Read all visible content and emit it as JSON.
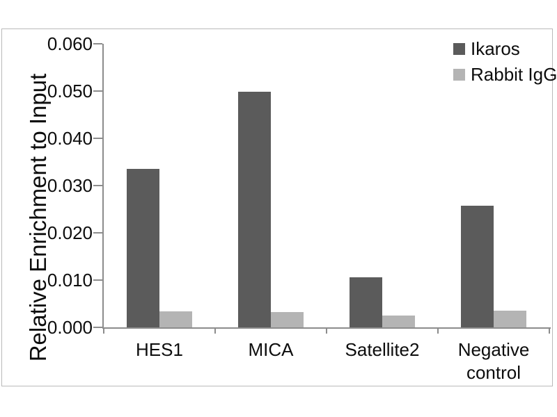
{
  "chart_data": {
    "type": "bar",
    "title": "",
    "xlabel": "",
    "ylabel": "Relative Enrichment to Input",
    "categories": [
      "HES1",
      "MICA",
      "Satellite2",
      "Negative control"
    ],
    "series": [
      {
        "name": "Ikaros",
        "color": "#5b5b5b",
        "values": [
          0.0335,
          0.0498,
          0.0106,
          0.0258
        ]
      },
      {
        "name": "Rabbit IgG",
        "color": "#b4b4b4",
        "values": [
          0.0034,
          0.0032,
          0.0025,
          0.0036
        ]
      }
    ],
    "ylim": [
      0,
      0.06
    ],
    "y_tick_step": 0.01,
    "y_tick_labels": [
      "0.000",
      "0.010",
      "0.020",
      "0.030",
      "0.040",
      "0.050",
      "0.060"
    ],
    "grid": false,
    "legend_position": "top-right",
    "colors": {
      "axis": "#8c8c8c",
      "frame_border": "#b9b9b9",
      "text": "#0d0d0d",
      "background": "#ffffff"
    }
  }
}
